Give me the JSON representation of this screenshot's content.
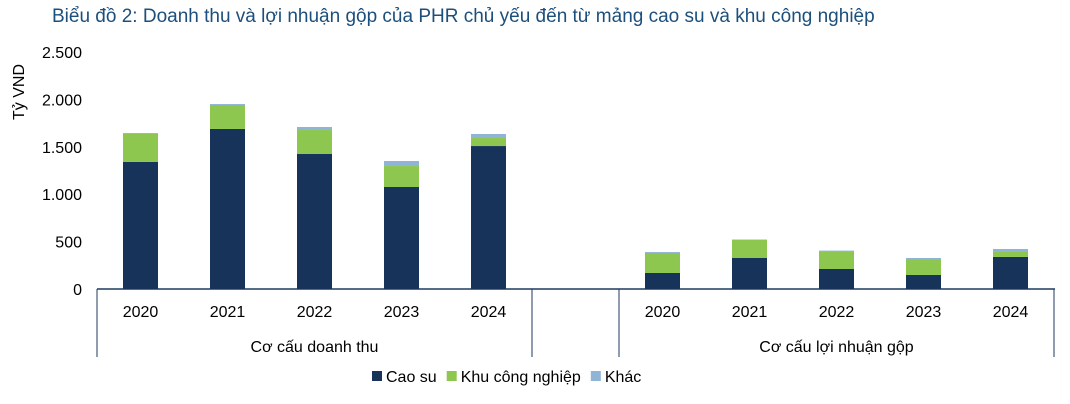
{
  "chart_data": {
    "type": "bar",
    "stacked": true,
    "title": "Biểu đồ 2: Doanh thu và lợi nhuận gộp của PHR chủ yếu đến từ mảng cao su và khu công nghiệp",
    "ylabel": "Tỷ VND",
    "ylim": [
      0,
      2500
    ],
    "yticks": [
      0,
      500,
      1000,
      1500,
      2000,
      2500
    ],
    "ytick_labels": [
      "0",
      "500",
      "1.000",
      "1.500",
      "2.000",
      "2.500"
    ],
    "groups": [
      {
        "label": "Cơ cấu doanh thu",
        "categories": [
          "2020",
          "2021",
          "2022",
          "2023",
          "2024"
        ],
        "series": [
          {
            "name": "Cao su",
            "values": [
              1340,
              1688,
              1424,
              1076,
              1508
            ]
          },
          {
            "name": "Khu công nghiệp",
            "values": [
              295,
              253,
              253,
              221,
              85
            ]
          },
          {
            "name": "Khác",
            "values": [
              10,
              10,
              32,
              53,
              42
            ]
          }
        ]
      },
      {
        "label": "Cơ cấu lợi nhuận gộp",
        "categories": [
          "2020",
          "2021",
          "2022",
          "2023",
          "2024"
        ],
        "series": [
          {
            "name": "Cao su",
            "values": [
              169,
              327,
              211,
              148,
              338
            ]
          },
          {
            "name": "Khu công nghiệp",
            "values": [
              211,
              190,
              189,
              168,
              62
            ]
          },
          {
            "name": "Khác",
            "values": [
              10,
              5,
              5,
              11,
              22
            ]
          }
        ]
      }
    ],
    "legend": [
      {
        "name": "Cao su",
        "color": "#17335a"
      },
      {
        "name": "Khu công nghiệp",
        "color": "#8dc750"
      },
      {
        "name": "Khác",
        "color": "#8fb4d6"
      }
    ],
    "legend_position": "bottom",
    "grid": false
  }
}
